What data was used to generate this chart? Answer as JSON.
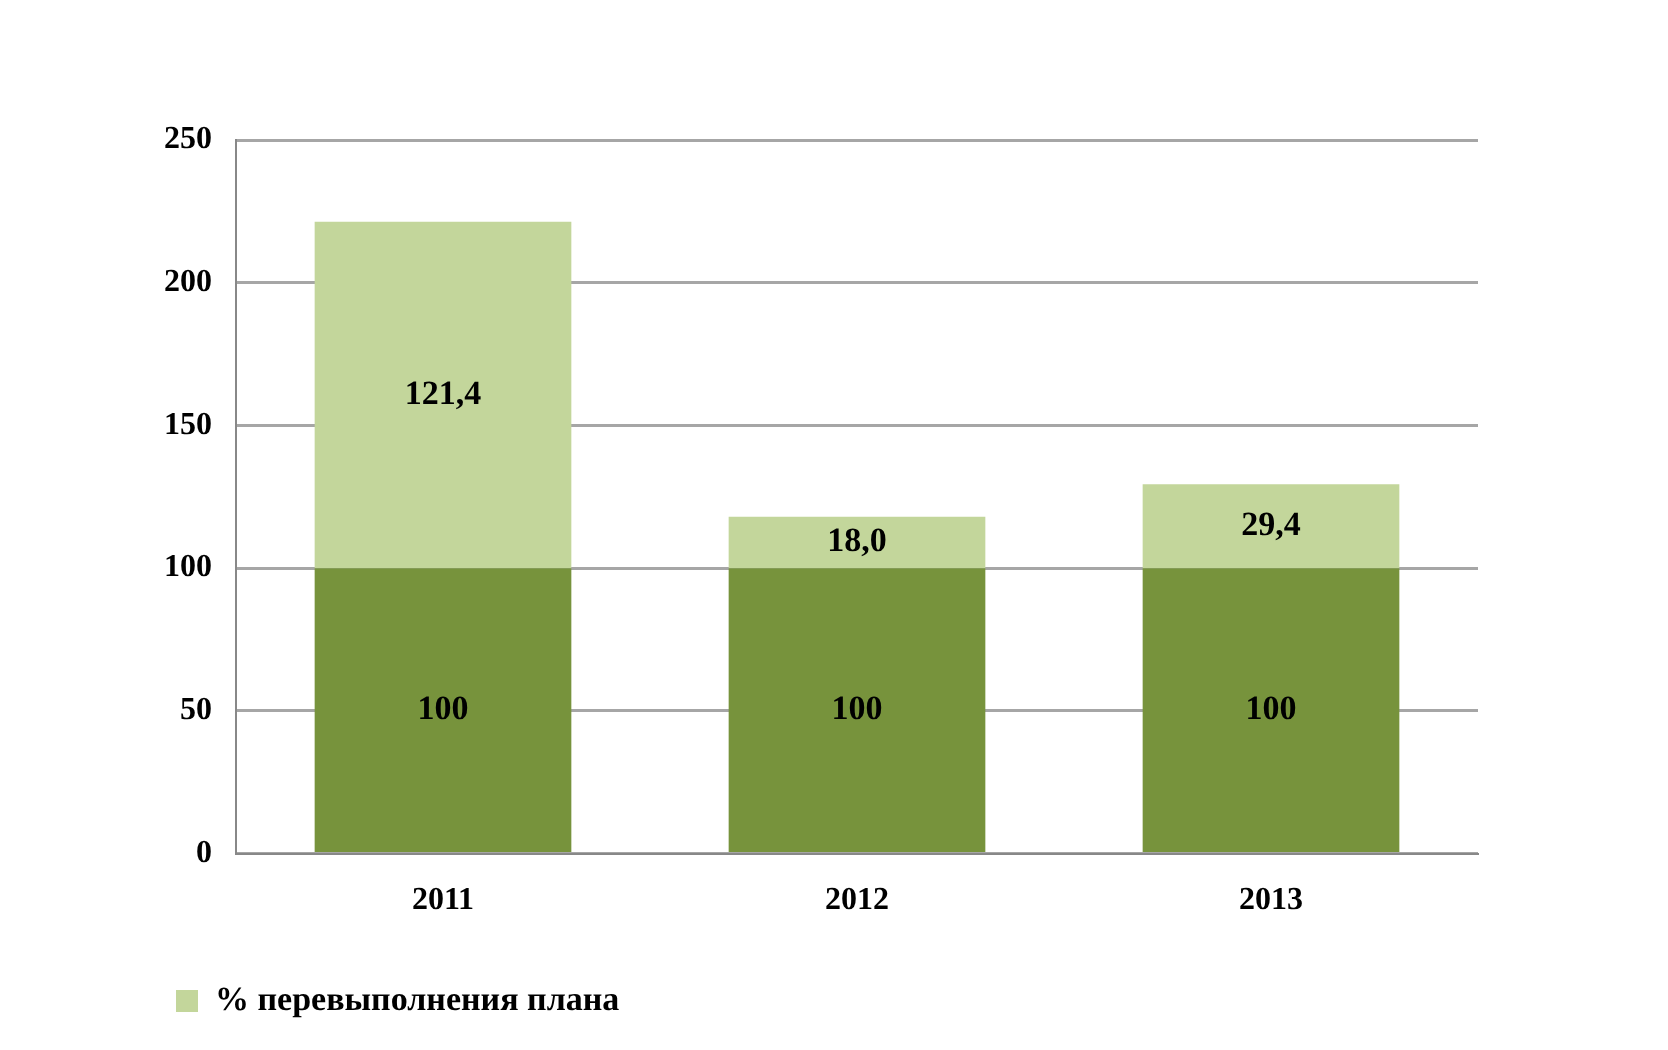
{
  "chart_data": {
    "type": "bar",
    "stacked": true,
    "categories": [
      "2011",
      "2012",
      "2013"
    ],
    "series": [
      {
        "color": "#77933c",
        "values": [
          100,
          100,
          100
        ],
        "value_labels": [
          "100",
          "100",
          "100"
        ]
      },
      {
        "name": "% перевыполнения плана",
        "color": "#c3d69b",
        "values": [
          121.4,
          18.0,
          29.4
        ],
        "value_labels": [
          "121,4",
          "18,0",
          "29,4"
        ]
      }
    ],
    "ylim": [
      0,
      250
    ],
    "yticks": [
      0,
      50,
      100,
      150,
      200,
      250
    ],
    "grid": "y",
    "legend": "bottom left"
  }
}
